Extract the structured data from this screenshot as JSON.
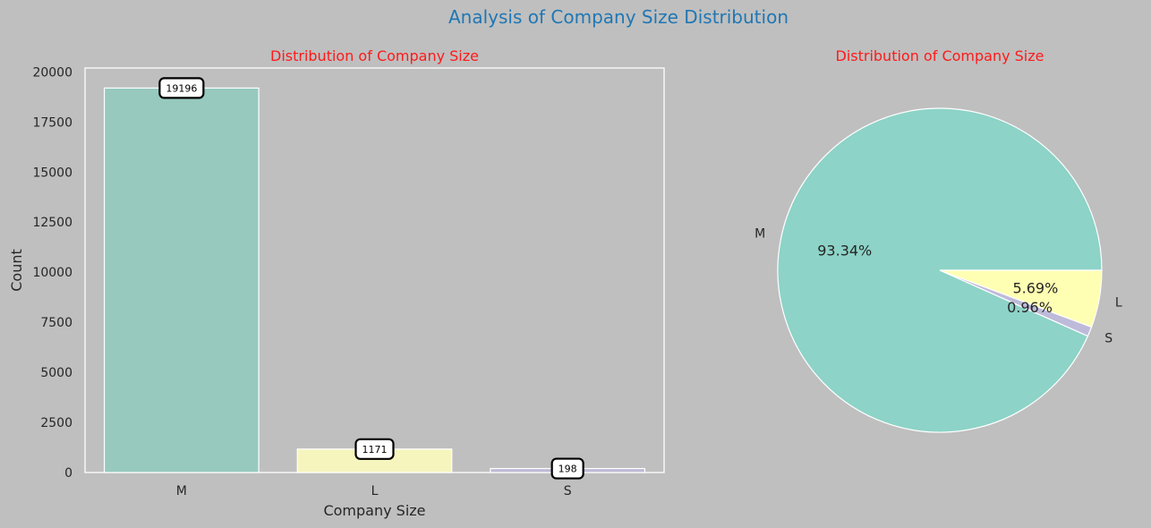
{
  "figure": {
    "title": "Analysis of Company Size Distribution",
    "title_color": "#1f77b4"
  },
  "chart_data": [
    {
      "type": "bar",
      "title": "Distribution of Company Size",
      "title_color": "#ff1a1a",
      "categories": [
        "M",
        "L",
        "S"
      ],
      "values": [
        19196,
        1171,
        198
      ],
      "colors": [
        "#97c9bf",
        "#f6f5be",
        "#bdb9d5"
      ],
      "bar_labels": [
        "19196",
        "1171",
        "198"
      ],
      "xlabel": "Company Size",
      "ylabel": "Count",
      "ylim": [
        0,
        20196
      ],
      "yticks": [
        0,
        2500,
        5000,
        7500,
        10000,
        12500,
        15000,
        17500,
        20000
      ],
      "ytick_labels": [
        "0",
        "2500",
        "5000",
        "7500",
        "10000",
        "12500",
        "15000",
        "17500",
        "20000"
      ],
      "grid": false
    },
    {
      "type": "pie",
      "title": "Distribution of Company Size",
      "title_color": "#ff1a1a",
      "labels": [
        "M",
        "S",
        "L"
      ],
      "values": [
        19196,
        198,
        1171
      ],
      "percent_labels": [
        "93.34%",
        "0.96%",
        "5.69%"
      ],
      "colors": [
        "#8dd3c7",
        "#bebada",
        "#ffffb3"
      ]
    }
  ]
}
